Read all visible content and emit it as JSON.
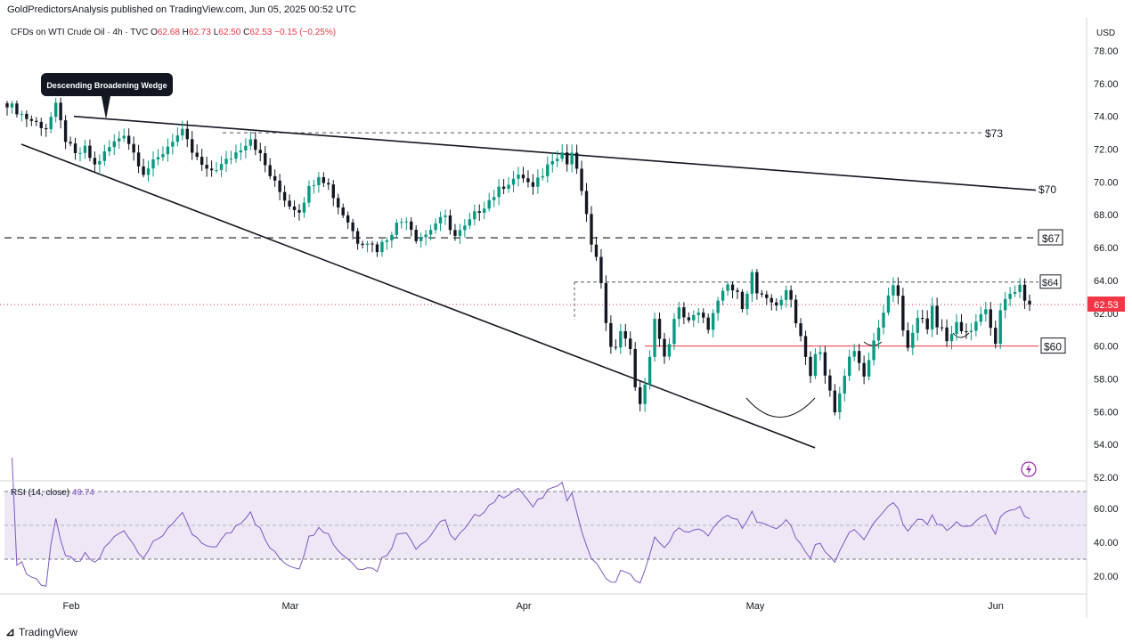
{
  "header": {
    "published": "GoldPredictorsAnalysis published on TradingView.com, Jun 05, 2025 00:52 UTC"
  },
  "footer": {
    "brand": "TradingView"
  },
  "colors": {
    "bull": "#089981",
    "bear": "#131722",
    "rsi": "#7E57C2",
    "rsi_band": "#EDE7F6",
    "price_tag": "#f23645",
    "support": "#f23645"
  },
  "chart_data": [
    {
      "type": "candlestick",
      "legend": {
        "symbol": "CFDs on WTI Crude Oil · 4h · TVC",
        "open_label": "O",
        "open": "62.68",
        "high_label": "H",
        "high": "62.73",
        "low_label": "L",
        "low": "62.50",
        "close_label": "C",
        "close": "62.53",
        "change": "−0.15 (−0.25%)"
      },
      "currency": "USD",
      "y_ticks": [
        "78.00",
        "76.00",
        "74.00",
        "72.00",
        "70.00",
        "68.00",
        "66.00",
        "64.00",
        "62.00",
        "60.00",
        "58.00",
        "56.00",
        "54.00",
        "52.00"
      ],
      "y_range": [
        52,
        79.5
      ],
      "x_ticks": [
        "Feb",
        "Mar",
        "Apr",
        "May",
        "Jun"
      ],
      "last_price": "62.53",
      "annotation": "Descending Broadening Wedge",
      "levels": [
        {
          "label": "$73",
          "value": 73.0
        },
        {
          "label": "$70",
          "value": 69.6
        },
        {
          "label": "$67",
          "value": 66.6
        },
        {
          "label": "$64",
          "value": 63.9
        },
        {
          "label": "$60",
          "value": 60.0
        }
      ],
      "path": [
        [
          0,
          74.8
        ],
        [
          4,
          73.9
        ],
        [
          8,
          73.3
        ],
        [
          10,
          74.6
        ],
        [
          12,
          72.6
        ],
        [
          14,
          71.6
        ],
        [
          16,
          72.0
        ],
        [
          18,
          71.0
        ],
        [
          21,
          72.1
        ],
        [
          24,
          73.0
        ],
        [
          26,
          71.8
        ],
        [
          28,
          70.6
        ],
        [
          31,
          71.4
        ],
        [
          34,
          72.6
        ],
        [
          36,
          73.0
        ],
        [
          38,
          71.8
        ],
        [
          41,
          70.6
        ],
        [
          44,
          71.0
        ],
        [
          47,
          71.8
        ],
        [
          50,
          72.7
        ],
        [
          52,
          71.6
        ],
        [
          54,
          70.4
        ],
        [
          56,
          69.4
        ],
        [
          58,
          68.6
        ],
        [
          60,
          68.3
        ],
        [
          62,
          69.6
        ],
        [
          64,
          70.5
        ],
        [
          66,
          69.8
        ],
        [
          68,
          68.5
        ],
        [
          70,
          67.6
        ],
        [
          72,
          66.4
        ],
        [
          74,
          66.4
        ],
        [
          76,
          65.9
        ],
        [
          78,
          66.6
        ],
        [
          80,
          67.4
        ],
        [
          82,
          67.8
        ],
        [
          84,
          66.6
        ],
        [
          86,
          66.8
        ],
        [
          88,
          67.5
        ],
        [
          90,
          67.8
        ],
        [
          92,
          66.7
        ],
        [
          94,
          67.2
        ],
        [
          96,
          68.0
        ],
        [
          98,
          68.6
        ],
        [
          100,
          69.2
        ],
        [
          102,
          69.8
        ],
        [
          104,
          70.2
        ],
        [
          106,
          70.3
        ],
        [
          108,
          69.6
        ],
        [
          110,
          70.5
        ],
        [
          112,
          71.5
        ],
        [
          114,
          71.8
        ],
        [
          115,
          71.1
        ],
        [
          116,
          71.8
        ],
        [
          117,
          70.6
        ],
        [
          118,
          69.5
        ],
        [
          119,
          67.8
        ],
        [
          120,
          66.3
        ],
        [
          121,
          65.3
        ],
        [
          122,
          63.6
        ],
        [
          123,
          61.6
        ],
        [
          124,
          60.2
        ],
        [
          125,
          59.8
        ],
        [
          126,
          61.0
        ],
        [
          127,
          60.6
        ],
        [
          128,
          59.6
        ],
        [
          129,
          57.6
        ],
        [
          130,
          56.5
        ],
        [
          131,
          57.5
        ],
        [
          132,
          59.2
        ],
        [
          133,
          61.9
        ],
        [
          134,
          60.4
        ],
        [
          135,
          59.2
        ],
        [
          136,
          60.3
        ],
        [
          137,
          61.5
        ],
        [
          138,
          62.2
        ],
        [
          140,
          61.6
        ],
        [
          142,
          61.9
        ],
        [
          144,
          61.2
        ],
        [
          146,
          62.6
        ],
        [
          148,
          63.7
        ],
        [
          150,
          63.1
        ],
        [
          151,
          62.5
        ],
        [
          152,
          63.4
        ],
        [
          153,
          64.4
        ],
        [
          154,
          63.2
        ],
        [
          156,
          62.7
        ],
        [
          158,
          62.6
        ],
        [
          160,
          63.2
        ],
        [
          161,
          62.8
        ],
        [
          162,
          61.6
        ],
        [
          163,
          60.6
        ],
        [
          164,
          59.5
        ],
        [
          165,
          58.2
        ],
        [
          166,
          59.4
        ],
        [
          167,
          59.5
        ],
        [
          168,
          58.2
        ],
        [
          169,
          57.2
        ],
        [
          170,
          56.2
        ],
        [
          171,
          57.0
        ],
        [
          172,
          58.0
        ],
        [
          173,
          59.2
        ],
        [
          174,
          59.7
        ],
        [
          175,
          58.9
        ],
        [
          176,
          58.3
        ],
        [
          177,
          59.2
        ],
        [
          178,
          60.1
        ],
        [
          179,
          61.2
        ],
        [
          180,
          61.8
        ],
        [
          181,
          63.1
        ],
        [
          182,
          63.6
        ],
        [
          183,
          62.9
        ],
        [
          184,
          61.2
        ],
        [
          185,
          60.1
        ],
        [
          186,
          60.6
        ],
        [
          187,
          61.6
        ],
        [
          188,
          61.7
        ],
        [
          189,
          61.2
        ],
        [
          190,
          62.4
        ],
        [
          191,
          61.3
        ],
        [
          192,
          61.1
        ],
        [
          193,
          60.5
        ],
        [
          194,
          60.5
        ],
        [
          195,
          61.4
        ],
        [
          196,
          61.0
        ],
        [
          197,
          60.7
        ],
        [
          198,
          61.1
        ],
        [
          199,
          61.5
        ],
        [
          200,
          61.9
        ],
        [
          201,
          62.4
        ],
        [
          202,
          61.1
        ],
        [
          203,
          60.2
        ],
        [
          204,
          62.0
        ],
        [
          205,
          62.8
        ],
        [
          206,
          63.3
        ],
        [
          207,
          63.1
        ],
        [
          208,
          63.5
        ],
        [
          209,
          62.8
        ],
        [
          210,
          62.53
        ]
      ],
      "rsi": {
        "label": "RSI (14, close)",
        "value": "49.74",
        "y_ticks": [
          "60.00",
          "40.00",
          "20.00"
        ],
        "upper": 70,
        "middle": 50,
        "lower": 30
      }
    }
  ]
}
